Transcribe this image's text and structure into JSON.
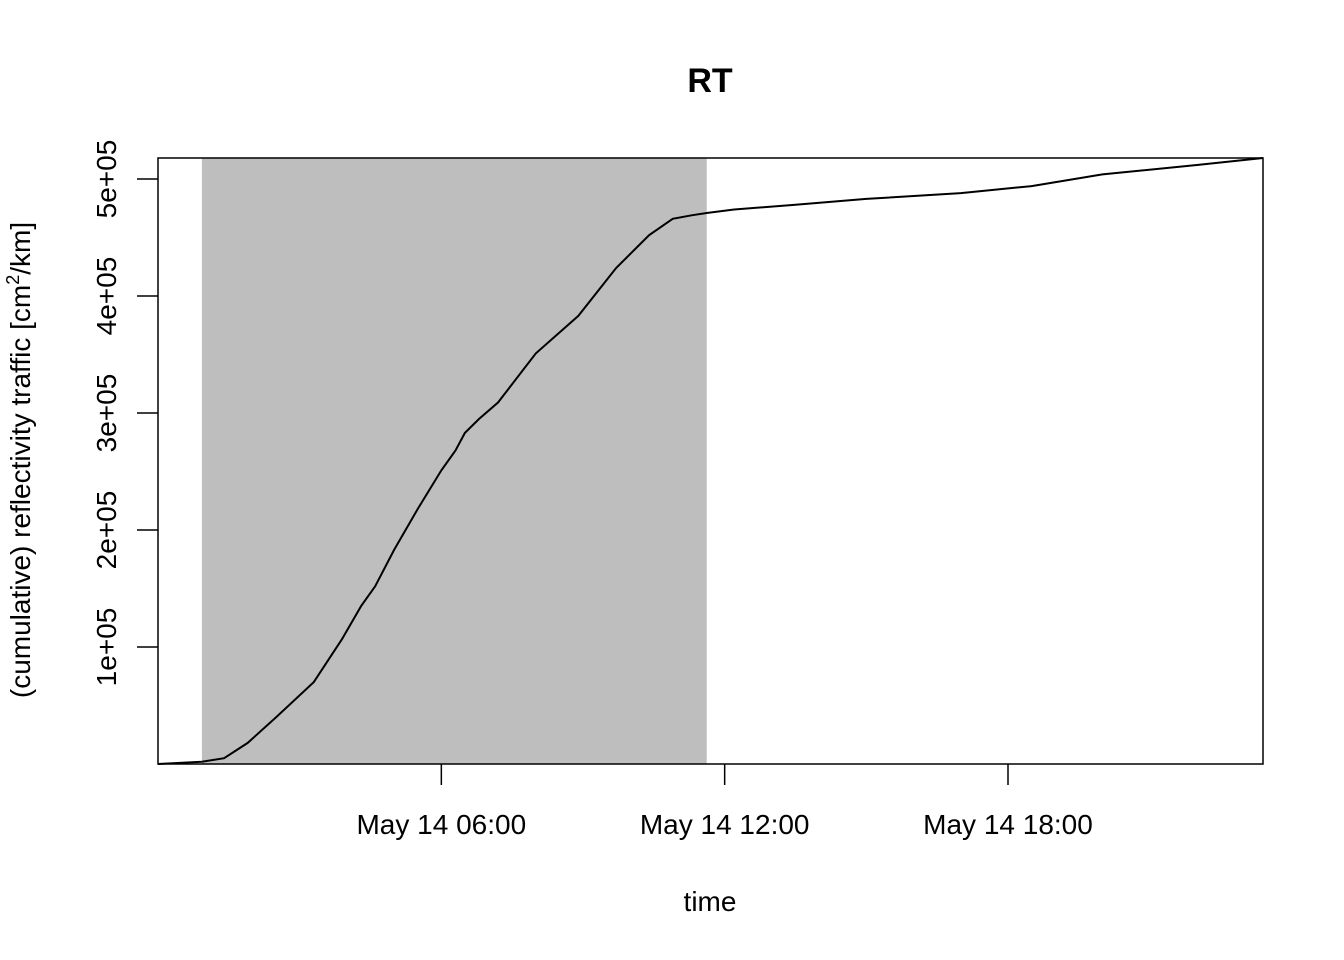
{
  "chart_data": {
    "type": "line",
    "title": "RT",
    "xlabel": "time",
    "ylabel": {
      "before": "(cumulative) reflectivity traffic [cm",
      "superscript": "2",
      "after": "/km]"
    },
    "x_unit": "hours since May 14 00:00",
    "xlim": [
      0.0,
      23.4
    ],
    "ylim": [
      0,
      518000
    ],
    "x_ticks": [
      {
        "value": 6,
        "label": "May 14 06:00"
      },
      {
        "value": 12,
        "label": "May 14 12:00"
      },
      {
        "value": 18,
        "label": "May 14 18:00"
      }
    ],
    "y_ticks": [
      {
        "value": 100000,
        "label": "1e+05"
      },
      {
        "value": 200000,
        "label": "2e+05"
      },
      {
        "value": 300000,
        "label": "3e+05"
      },
      {
        "value": 400000,
        "label": "4e+05"
      },
      {
        "value": 500000,
        "label": "5e+05"
      }
    ],
    "shaded_interval": {
      "x_start": 0.93,
      "x_end": 11.62,
      "color": "#bebebe"
    },
    "line_color": "#000000",
    "series": [
      {
        "x": [
          0.0,
          0.93,
          1.4,
          1.9,
          2.5,
          3.3,
          3.9,
          4.3,
          4.6,
          5.0,
          5.5,
          6.0,
          6.3,
          6.5,
          6.8,
          7.2,
          8.0,
          8.9,
          9.7,
          10.4,
          10.9,
          11.3,
          11.62,
          12.2,
          13.5,
          15.0,
          17.0,
          18.5,
          20.0,
          22.0,
          23.4
        ],
        "y": [
          0,
          2000,
          5000,
          18000,
          40000,
          70000,
          107000,
          135000,
          152000,
          183000,
          218000,
          251000,
          268000,
          283000,
          295000,
          309000,
          351000,
          383000,
          424000,
          452000,
          466000,
          469000,
          471000,
          474000,
          478000,
          483000,
          488000,
          494000,
          504000,
          512000,
          518000
        ]
      }
    ]
  }
}
